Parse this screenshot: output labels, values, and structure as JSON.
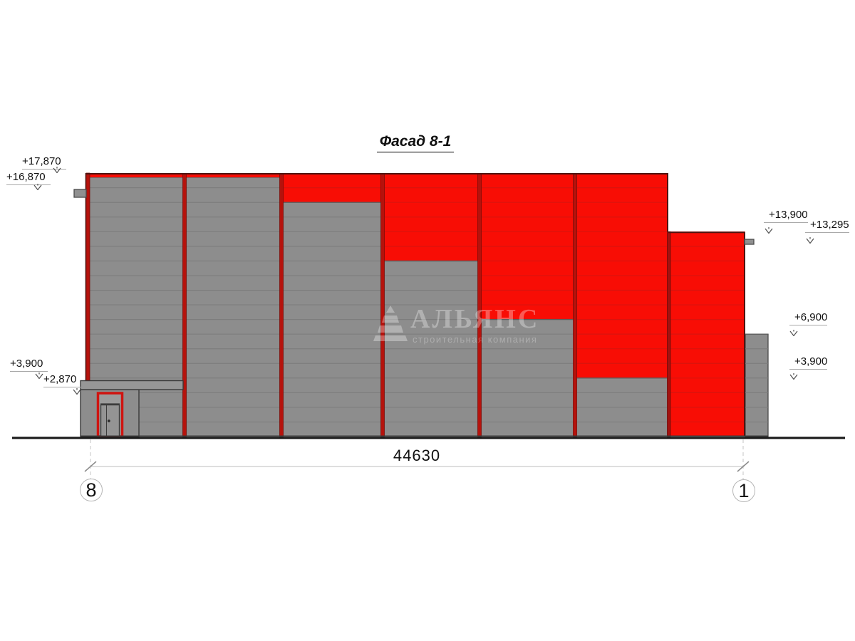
{
  "title": "Фасад 8-1",
  "watermark": {
    "logo_icon": "stepped-pyramid",
    "name": "АЛЬЯНС",
    "subtitle": "строительная компания"
  },
  "elevation_markers": {
    "left": [
      {
        "label": "+17,870"
      },
      {
        "label": "+16,870"
      },
      {
        "label": "+3,900"
      },
      {
        "label": "+2,870"
      }
    ],
    "right": [
      {
        "label": "+13,900"
      },
      {
        "label": "+13,295"
      },
      {
        "label": "+6,900"
      },
      {
        "label": "+3,900"
      }
    ]
  },
  "dimension": {
    "length_label": "44630"
  },
  "grid_axes": {
    "left_label": "8",
    "right_label": "1"
  },
  "colors": {
    "panel_red": "#f80d05",
    "panel_red_seam": "#d9140e",
    "panel_gray": "#8d8d8d",
    "panel_gray_seam": "#7b7b7b",
    "mullion_red": "#b5120c",
    "door_frame_red": "#cf1410",
    "outline_dark": "#3a3a3a",
    "ground_line": "#1b1b1b",
    "annotation_gray": "#a9a9a9"
  }
}
